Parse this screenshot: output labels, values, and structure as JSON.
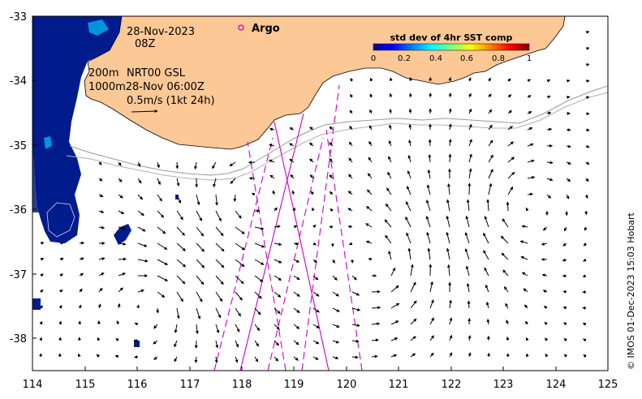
{
  "map": {
    "date": "28-Nov-2023",
    "time": "08Z",
    "depth_200": "200m",
    "product": "NRT00 GSL",
    "depth_1000_line": "1000m28-Nov 06:00Z",
    "vector_scale": "0.5m/s (1kt 24h)",
    "argo_label": "Argo",
    "credit": "© IMOS 01-Dec-2023 15:03 Hobart",
    "x_ticks": [
      "114",
      "115",
      "116",
      "117",
      "118",
      "119",
      "120",
      "121",
      "122",
      "123",
      "124",
      "125"
    ],
    "y_ticks": [
      "-33",
      "-34",
      "-35",
      "-36",
      "-37",
      "-38"
    ],
    "extent": {
      "lon": [
        114,
        125
      ],
      "lat": [
        -38.5,
        -33
      ]
    },
    "colorbar": {
      "title": "std dev of 4hr SST comp",
      "ticks": [
        "0",
        "0.2",
        "0.4",
        "0.6",
        "0.8",
        "1"
      ],
      "range": [
        0,
        1
      ]
    },
    "colors": {
      "land": "#fcc896",
      "ocean": "#ffffff",
      "sst_low": "#001b8c",
      "track": "#cc00cc",
      "isobath": "#999999"
    }
  }
}
